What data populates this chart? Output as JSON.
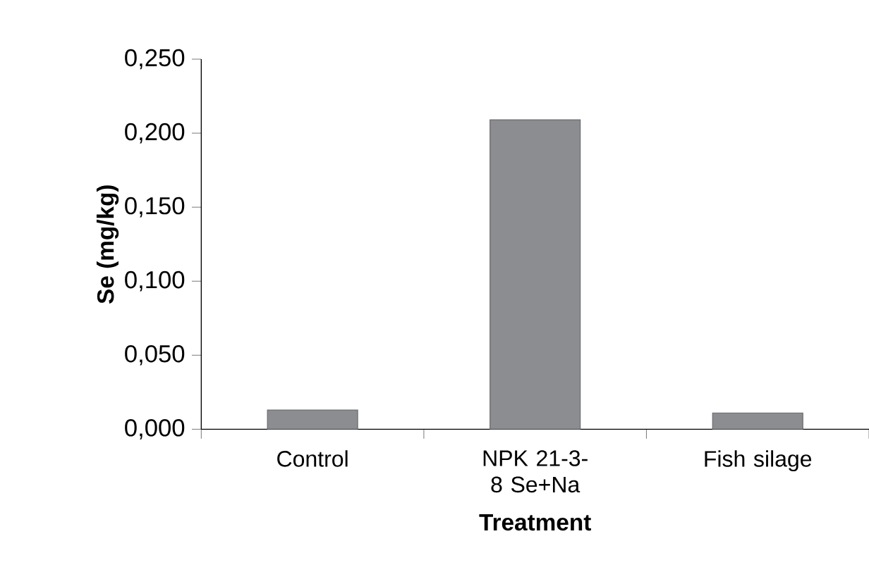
{
  "chart_data": {
    "type": "bar",
    "xlabel": "Treatment",
    "ylabel": "Se (mg/kg)",
    "categories": [
      "Control",
      "NPK 21-3-8 Se+Na",
      "Fish silage"
    ],
    "values": [
      0.013,
      0.209,
      0.011
    ],
    "color": "#8c8d91",
    "ylim": [
      0,
      0.25
    ],
    "yticks": [
      {
        "value": 0,
        "label": "0,000"
      },
      {
        "value": 0.05,
        "label": "0,050"
      },
      {
        "value": 0.1,
        "label": "0,100"
      },
      {
        "value": 0.15,
        "label": "0,150"
      },
      {
        "value": 0.2,
        "label": "0,200"
      },
      {
        "value": 0.25,
        "label": "0,250"
      }
    ]
  }
}
